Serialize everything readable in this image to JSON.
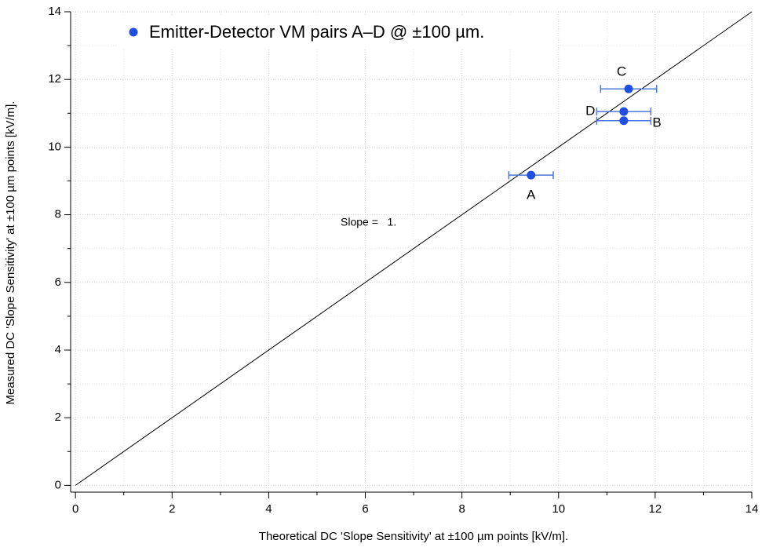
{
  "chart_data": {
    "type": "scatter",
    "legend_label": "Emitter-Detector VM pairs A–D @ ±100 µm.",
    "xlabel": "Theoretical DC 'Slope Sensitivity' at ±100 µm points [kV/m].",
    "ylabel": "Measured DC 'Slope Sensitivity' at ±100 µm points [kV/m].",
    "xlim": [
      -0.1,
      14
    ],
    "ylim": [
      -0.2,
      14
    ],
    "xticks": [
      0,
      2,
      4,
      6,
      8,
      10,
      12,
      14
    ],
    "yticks": [
      0,
      2,
      4,
      6,
      8,
      10,
      12,
      14
    ],
    "minor_xticks": [
      1,
      3,
      5,
      7,
      9,
      11,
      13
    ],
    "minor_yticks": [
      1,
      3,
      5,
      7,
      9,
      11,
      13
    ],
    "grid": true,
    "series": [
      {
        "name": "Emitter-Detector VM pairs A–D @ ±100 µm.",
        "color": "#1f4fe0",
        "error_color": "#4a78d8",
        "labels": [
          "A",
          "B",
          "C",
          "D"
        ],
        "x": [
          9.43,
          11.35,
          11.45,
          11.35
        ],
        "y": [
          9.17,
          10.78,
          11.72,
          11.05
        ],
        "xerr": [
          0.46,
          0.56,
          0.58,
          0.56
        ]
      }
    ],
    "reference_line": {
      "x": [
        0,
        14
      ],
      "y": [
        0,
        14
      ],
      "color": "#000"
    },
    "annotation": "Slope =   1."
  }
}
